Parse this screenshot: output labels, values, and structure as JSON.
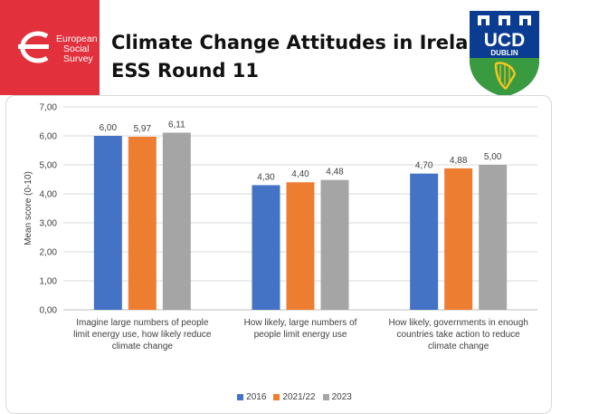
{
  "header": {
    "title_line1": "Climate Change Attitudes in Ireland –",
    "title_line2": "ESS Round 11",
    "ess_logo": {
      "line1": "European",
      "line2": "Social",
      "line3": "Survey",
      "color": "#e2313d"
    },
    "ucd_logo": {
      "text1": "UCD",
      "text2": "DUBLIN",
      "shield_color": "#0a3d91",
      "lower_color": "#3a9a3f",
      "harp_color": "#f3c623"
    }
  },
  "chart_data": {
    "type": "bar",
    "categories": [
      "Imagine large numbers of people limit energy use, how likely reduce climate change",
      "How likely, large numbers of people limit energy use",
      "How likely, governments in enough countries take action to reduce climate change"
    ],
    "category_lines": [
      [
        "Imagine large numbers of people",
        "limit energy use, how likely reduce",
        "climate change"
      ],
      [
        "How likely, large numbers of",
        "people limit energy use"
      ],
      [
        "How likely, governments in enough",
        "countries take action to reduce",
        "climate change"
      ]
    ],
    "series": [
      {
        "name": "2016",
        "values": [
          6.0,
          4.3,
          4.7
        ],
        "labels": [
          "6,00",
          "4,30",
          "4,70"
        ],
        "color": "#4472c4"
      },
      {
        "name": "2021/22",
        "values": [
          5.97,
          4.4,
          4.88
        ],
        "labels": [
          "5,97",
          "4,40",
          "4,88"
        ],
        "color": "#ed7d31"
      },
      {
        "name": "2023",
        "values": [
          6.11,
          4.48,
          5.0
        ],
        "labels": [
          "6,11",
          "4,48",
          "5,00"
        ],
        "color": "#a5a5a5"
      }
    ],
    "ylabel": "Mean score (0-10)",
    "ylim": [
      0,
      7
    ],
    "yticks": [
      "0,00",
      "1,00",
      "2,00",
      "3,00",
      "4,00",
      "5,00",
      "6,00",
      "7,00"
    ],
    "grid": true,
    "legend_position": "bottom"
  }
}
